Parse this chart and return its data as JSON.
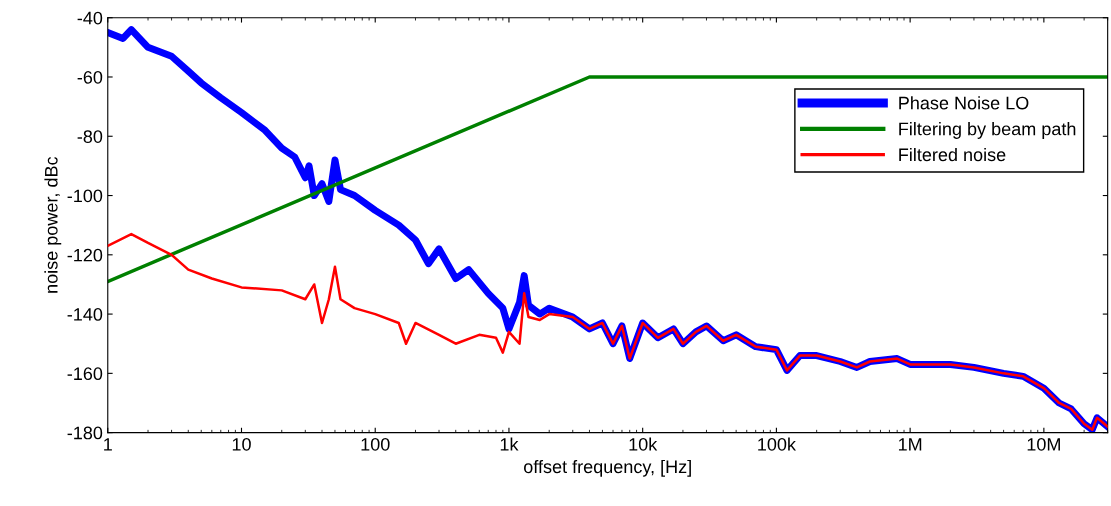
{
  "chart_data": {
    "type": "line",
    "xlabel": "offset frequency, [Hz]",
    "ylabel": "noise power, dBc",
    "log": "x",
    "xlim": [
      1,
      30000000
    ],
    "ylim": [
      -180,
      -40
    ],
    "xticks": [
      1,
      10,
      100,
      {
        "value": 1000,
        "label": "1k"
      },
      {
        "value": 10000,
        "label": "10k"
      },
      {
        "value": 100000,
        "label": "100k"
      },
      {
        "value": 1000000,
        "label": "1M"
      },
      {
        "value": 10000000,
        "label": "10M"
      }
    ],
    "yticks": [
      -180,
      -160,
      -140,
      -120,
      -100,
      -80,
      -60,
      -40
    ],
    "grid": false,
    "legend": "top right",
    "marker": "none",
    "line_style": "solid",
    "series": [
      {
        "name": "Phase Noise LO",
        "color": "#0000ff",
        "x": [
          1,
          1.3,
          1.5,
          2,
          3,
          4,
          5,
          7,
          10,
          15,
          20,
          25,
          30,
          32,
          35,
          40,
          45,
          50,
          55,
          70,
          100,
          150,
          200,
          250,
          300,
          400,
          500,
          700,
          900,
          1000,
          1200,
          1300,
          1400,
          1700,
          2000,
          3000,
          4000,
          5000,
          6000,
          7000,
          8000,
          10000,
          13000,
          17000,
          20000,
          25000,
          30000,
          40000,
          50000,
          70000,
          100000,
          120000,
          150000,
          200000,
          300000,
          400000,
          500000,
          800000,
          1000000,
          2000000,
          3000000,
          5000000,
          7000000,
          10000000,
          13000000,
          16000000,
          20000000,
          23000000,
          25000000,
          30000000
        ],
        "values": [
          -45,
          -47,
          -44,
          -50,
          -53,
          -58,
          -62,
          -67,
          -72,
          -78,
          -84,
          -87,
          -94,
          -90,
          -100,
          -96,
          -102,
          -88,
          -98,
          -100,
          -105,
          -110,
          -115,
          -123,
          -118,
          -128,
          -125,
          -133,
          -138,
          -145,
          -136,
          -127,
          -137,
          -140,
          -138,
          -141,
          -145,
          -143,
          -150,
          -144,
          -155,
          -143,
          -148,
          -145,
          -150,
          -146,
          -144,
          -149,
          -147,
          -151,
          -152,
          -159,
          -154,
          -154,
          -156,
          -158,
          -156,
          -155,
          -157,
          -157,
          -158,
          -160,
          -161,
          -165,
          -170,
          -172,
          -177,
          -179,
          -175,
          -178
        ]
      },
      {
        "name": "Filtering by beam path",
        "color": "#008000",
        "x": [
          1,
          4000,
          30000000
        ],
        "values": [
          -129,
          -60,
          -60
        ]
      },
      {
        "name": "Filtered noise",
        "color": "#ff0000",
        "x": [
          1,
          1.5,
          2,
          3,
          4,
          6,
          10,
          20,
          30,
          35,
          40,
          45,
          50,
          55,
          70,
          100,
          150,
          170,
          200,
          300,
          400,
          600,
          800,
          900,
          1000,
          1200,
          1300,
          1400,
          1700,
          2000,
          3000,
          4000,
          5000,
          6000,
          7000,
          8000,
          10000,
          13000,
          17000,
          20000,
          25000,
          30000,
          40000,
          50000,
          70000,
          100000,
          120000,
          150000,
          200000,
          300000,
          400000,
          500000,
          800000,
          1000000,
          2000000,
          3000000,
          5000000,
          7000000,
          10000000,
          13000000,
          16000000,
          20000000,
          23000000,
          25000000,
          30000000
        ],
        "values": [
          -117,
          -113,
          -116,
          -120,
          -125,
          -128,
          -131,
          -132,
          -135,
          -130,
          -143,
          -135,
          -124,
          -135,
          -138,
          -140,
          -143,
          -150,
          -143,
          -147,
          -150,
          -147,
          -148,
          -153,
          -146,
          -150,
          -133,
          -141,
          -142,
          -140,
          -141,
          -145,
          -143,
          -150,
          -144,
          -155,
          -143,
          -148,
          -145,
          -150,
          -146,
          -144,
          -149,
          -147,
          -151,
          -152,
          -159,
          -154,
          -154,
          -156,
          -158,
          -156,
          -155,
          -157,
          -157,
          -158,
          -160,
          -161,
          -165,
          -170,
          -172,
          -177,
          -179,
          -175,
          -178
        ]
      }
    ]
  }
}
